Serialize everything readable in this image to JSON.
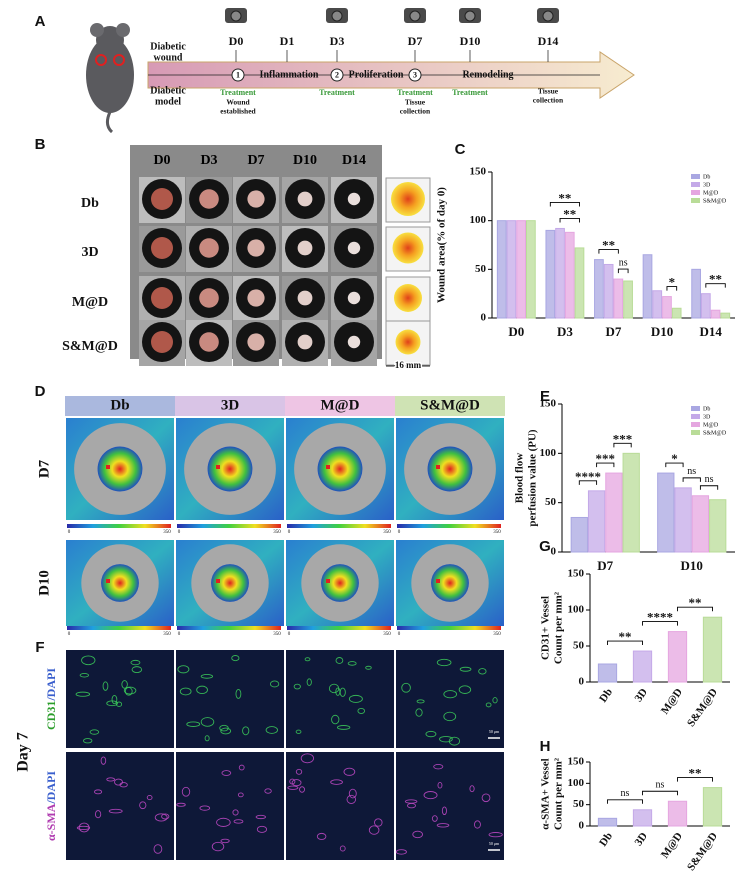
{
  "panel_labels": [
    "A",
    "B",
    "C",
    "D",
    "E",
    "F",
    "G",
    "H"
  ],
  "timeline": {
    "rows": [
      [
        "Diabetic",
        "wound"
      ],
      [
        "Diabetic",
        "model"
      ]
    ],
    "days": [
      "D0",
      "D1",
      "D3",
      "D7",
      "D10",
      "D14"
    ],
    "steps": [
      "1",
      "2",
      "3"
    ],
    "phases": [
      "Inflammation",
      "Proliferation",
      "Remodeling"
    ],
    "treatment": "Treatment",
    "notes": [
      [
        "Wound",
        "established"
      ],
      [
        "Tissue",
        "collection"
      ],
      [
        "Tissue",
        "collection"
      ]
    ]
  },
  "wound_photos": {
    "columns": [
      "D0",
      "D3",
      "D7",
      "D10",
      "D14"
    ],
    "rows": [
      "Db",
      "3D",
      "M@D",
      "S&M@D"
    ],
    "scale": "16 mm"
  },
  "perfusion_images": {
    "columns": [
      "Db",
      "3D",
      "M@D",
      "S&M@D"
    ],
    "rows": [
      "D7",
      "D10"
    ],
    "colorbar": [
      0,
      350
    ]
  },
  "staining": {
    "day": "Day 7",
    "rows": [
      [
        "CD31",
        "/DAPI"
      ],
      [
        "α-SMA",
        "/DAPI"
      ]
    ],
    "scale": "50 μm"
  },
  "chart_data": [
    {
      "type": "bar",
      "ylabel": [
        "Wound area(% of day 0)"
      ],
      "categories": [
        "D0",
        "D3",
        "D7",
        "D10",
        "D14"
      ],
      "series": [
        {
          "name": "Db",
          "color": "#a9a7e2",
          "values": [
            100,
            90,
            60,
            65,
            50
          ]
        },
        {
          "name": "3D",
          "color": "#c4a9e8",
          "values": [
            100,
            92,
            55,
            28,
            25
          ]
        },
        {
          "name": "M@D",
          "color": "#e5a6e0",
          "values": [
            100,
            88,
            40,
            22,
            8
          ]
        },
        {
          "name": "S&M@D",
          "color": "#b9dc98",
          "values": [
            100,
            72,
            38,
            10,
            5
          ]
        }
      ],
      "ylim": [
        0,
        150
      ],
      "yticks": [
        0,
        50,
        100,
        150
      ],
      "legend": "upper right",
      "annotations": [
        "**",
        "**",
        "**",
        "ns",
        "*",
        "**"
      ]
    },
    {
      "type": "bar",
      "ylabel": [
        "Blood flow",
        "perfusion value (PU)"
      ],
      "categories": [
        "D7",
        "D10"
      ],
      "series": [
        {
          "name": "Db",
          "color": "#a9a7e2",
          "values": [
            35,
            80
          ]
        },
        {
          "name": "3D",
          "color": "#c4a9e8",
          "values": [
            62,
            65
          ]
        },
        {
          "name": "M@D",
          "color": "#e5a6e0",
          "values": [
            80,
            57
          ]
        },
        {
          "name": "S&M@D",
          "color": "#b9dc98",
          "values": [
            100,
            53
          ]
        }
      ],
      "ylim": [
        0,
        150
      ],
      "yticks": [
        0,
        50,
        100,
        150
      ],
      "legend": "upper right",
      "annotations": [
        "****",
        "***",
        "***",
        "*",
        "ns",
        "ns"
      ]
    },
    {
      "type": "bar",
      "ylabel": [
        "CD31+ Vessel",
        "Count per mm²"
      ],
      "categories": [
        "Db",
        "3D",
        "M@D",
        "S&M@D"
      ],
      "values": [
        25,
        43,
        70,
        90
      ],
      "colors": [
        "#a9a7e2",
        "#c4a9e8",
        "#e5a6e0",
        "#b9dc98"
      ],
      "ylim": [
        0,
        150
      ],
      "yticks": [
        0,
        50,
        100,
        150
      ],
      "annotations": [
        "**",
        "****",
        "**"
      ]
    },
    {
      "type": "bar",
      "ylabel": [
        "α-SMA+ Vessel",
        "Count per mm²"
      ],
      "categories": [
        "Db",
        "3D",
        "M@D",
        "S&M@D"
      ],
      "values": [
        18,
        38,
        58,
        90
      ],
      "colors": [
        "#a9a7e2",
        "#c4a9e8",
        "#e5a6e0",
        "#b9dc98"
      ],
      "ylim": [
        0,
        150
      ],
      "yticks": [
        0,
        50,
        100,
        150
      ],
      "annotations": [
        "ns",
        "ns",
        "**"
      ]
    }
  ]
}
